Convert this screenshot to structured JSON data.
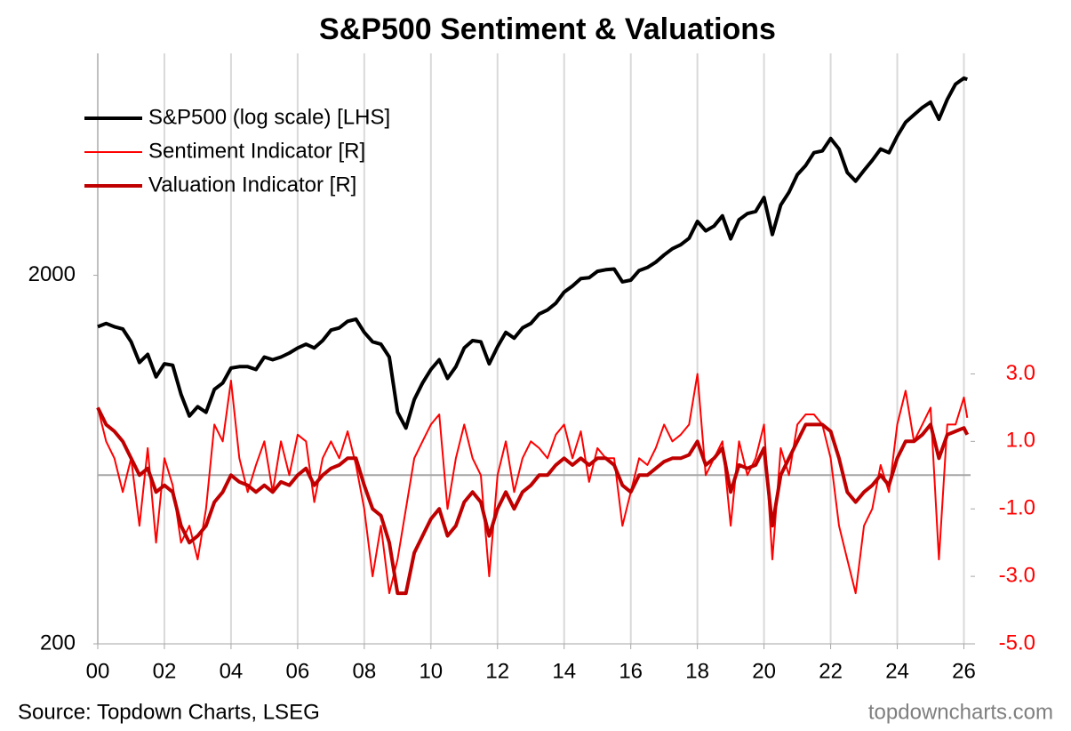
{
  "chart_data": {
    "type": "line",
    "title": "S&P500 Sentiment & Valuations",
    "annotations": {
      "source": "Source: Topdown Charts, LSEG",
      "watermark": "topdowncharts.com"
    },
    "x": [
      2000,
      2000.25,
      2000.5,
      2000.75,
      2001,
      2001.25,
      2001.5,
      2001.75,
      2002,
      2002.25,
      2002.5,
      2002.75,
      2003,
      2003.25,
      2003.5,
      2003.75,
      2004,
      2004.25,
      2004.5,
      2004.75,
      2005,
      2005.25,
      2005.5,
      2005.75,
      2006,
      2006.25,
      2006.5,
      2006.75,
      2007,
      2007.25,
      2007.5,
      2007.75,
      2008,
      2008.25,
      2008.5,
      2008.75,
      2009,
      2009.25,
      2009.5,
      2009.75,
      2010,
      2010.25,
      2010.5,
      2010.75,
      2011,
      2011.25,
      2011.5,
      2011.75,
      2012,
      2012.25,
      2012.5,
      2012.75,
      2013,
      2013.25,
      2013.5,
      2013.75,
      2014,
      2014.25,
      2014.5,
      2014.75,
      2015,
      2015.25,
      2015.5,
      2015.75,
      2016,
      2016.25,
      2016.5,
      2016.75,
      2017,
      2017.25,
      2017.5,
      2017.75,
      2018,
      2018.25,
      2018.5,
      2018.75,
      2019,
      2019.25,
      2019.5,
      2019.75,
      2020,
      2020.25,
      2020.5,
      2020.75,
      2021,
      2021.25,
      2021.5,
      2021.75,
      2022,
      2022.25,
      2022.5,
      2022.75,
      2023,
      2023.25,
      2023.5,
      2023.75,
      2024,
      2024.25,
      2024.5,
      2024.75,
      2025,
      2025.25,
      2025.5,
      2025.75,
      2026,
      2026.1
    ],
    "xlim": [
      2000,
      2026.2
    ],
    "xticks": [
      {
        "value": 2000,
        "label": "00"
      },
      {
        "value": 2002,
        "label": "02"
      },
      {
        "value": 2004,
        "label": "04"
      },
      {
        "value": 2006,
        "label": "06"
      },
      {
        "value": 2008,
        "label": "08"
      },
      {
        "value": 2010,
        "label": "10"
      },
      {
        "value": 2012,
        "label": "12"
      },
      {
        "value": 2014,
        "label": "14"
      },
      {
        "value": 2016,
        "label": "16"
      },
      {
        "value": 2018,
        "label": "18"
      },
      {
        "value": 2020,
        "label": "20"
      },
      {
        "value": 2022,
        "label": "22"
      },
      {
        "value": 2024,
        "label": "24"
      },
      {
        "value": 2026,
        "label": "26"
      }
    ],
    "ylim": [
      200,
      8000
    ],
    "yticks": [
      200,
      2000
    ],
    "ylog": true,
    "y2lim": [
      -5,
      12.5
    ],
    "y2ticks": [
      {
        "value": -5,
        "label": "-5.0"
      },
      {
        "value": -3,
        "label": "-3.0"
      },
      {
        "value": -1,
        "label": "-1.0"
      },
      {
        "value": 1,
        "label": "1.0"
      },
      {
        "value": 3,
        "label": "3.0"
      }
    ],
    "y2_color": "#ff0000",
    "hline": {
      "value": 0,
      "axis": "y2",
      "color": "#a6a6a6"
    },
    "grid": "x",
    "legend": "upper left",
    "series": [
      {
        "name": "S&P500 (log scale) [LHS]",
        "color": "#000000",
        "width": 4,
        "axis": "y",
        "values": [
          1450,
          1480,
          1450,
          1430,
          1320,
          1160,
          1220,
          1060,
          1150,
          1140,
          950,
          830,
          880,
          850,
          980,
          1020,
          1120,
          1130,
          1130,
          1110,
          1200,
          1180,
          1200,
          1230,
          1270,
          1300,
          1270,
          1330,
          1420,
          1440,
          1500,
          1520,
          1400,
          1320,
          1300,
          1200,
          850,
          770,
          920,
          1020,
          1110,
          1180,
          1050,
          1130,
          1270,
          1330,
          1320,
          1150,
          1280,
          1400,
          1350,
          1440,
          1480,
          1570,
          1610,
          1680,
          1800,
          1870,
          1960,
          1970,
          2050,
          2070,
          2080,
          1920,
          1940,
          2060,
          2100,
          2170,
          2270,
          2360,
          2420,
          2520,
          2800,
          2640,
          2720,
          2900,
          2510,
          2830,
          2940,
          2980,
          3250,
          2580,
          3100,
          3360,
          3750,
          3970,
          4300,
          4350,
          4700,
          4400,
          3800,
          3600,
          3850,
          4100,
          4400,
          4300,
          4770,
          5200,
          5450,
          5700,
          5900,
          5300,
          6000,
          6600,
          6850,
          6800
        ]
      },
      {
        "name": "Sentiment Indicator [R]",
        "color": "#ff0000",
        "width": 2,
        "axis": "y2",
        "values": [
          2.0,
          1.0,
          0.5,
          -0.5,
          0.5,
          -1.5,
          0.8,
          -2.0,
          0.5,
          -0.3,
          -2.0,
          -1.5,
          -2.5,
          -1.0,
          1.5,
          1.0,
          2.8,
          0.5,
          -0.5,
          0.3,
          1.0,
          -0.5,
          1.0,
          0.0,
          1.2,
          1.0,
          -0.8,
          0.5,
          1.0,
          0.5,
          1.3,
          0.3,
          -1.0,
          -3.0,
          -1.5,
          -3.5,
          -2.5,
          -1.0,
          0.5,
          1.0,
          1.5,
          1.8,
          -1.0,
          0.5,
          1.5,
          0.5,
          0.0,
          -3.0,
          0.0,
          1.0,
          -0.5,
          0.5,
          1.0,
          0.8,
          0.5,
          1.2,
          1.5,
          0.5,
          1.3,
          -0.2,
          0.8,
          0.5,
          0.5,
          -1.5,
          -0.5,
          0.5,
          0.3,
          0.8,
          1.5,
          1.0,
          1.2,
          1.5,
          3.0,
          0.0,
          0.5,
          1.0,
          -1.5,
          1.0,
          0.0,
          0.5,
          1.5,
          -2.5,
          0.8,
          0.0,
          1.5,
          1.8,
          1.8,
          1.5,
          0.5,
          -1.5,
          -2.5,
          -3.5,
          -1.5,
          -1.0,
          0.3,
          -0.5,
          1.5,
          2.5,
          1.0,
          1.5,
          2.0,
          -2.5,
          1.5,
          1.5,
          2.3,
          1.7
        ]
      },
      {
        "name": "Valuation Indicator [R]",
        "color": "#c00000",
        "width": 4,
        "axis": "y2",
        "values": [
          2.0,
          1.5,
          1.3,
          1.0,
          0.5,
          0.0,
          0.2,
          -0.5,
          -0.3,
          -0.5,
          -1.5,
          -2.0,
          -1.8,
          -1.5,
          -0.8,
          -0.5,
          0.0,
          -0.2,
          -0.3,
          -0.5,
          -0.3,
          -0.5,
          -0.2,
          -0.3,
          0.0,
          0.2,
          -0.3,
          0.0,
          0.2,
          0.3,
          0.5,
          0.5,
          -0.3,
          -1.0,
          -1.2,
          -2.0,
          -3.5,
          -3.5,
          -2.3,
          -1.8,
          -1.3,
          -1.0,
          -1.8,
          -1.5,
          -0.8,
          -0.5,
          -0.8,
          -1.8,
          -1.0,
          -0.5,
          -1.0,
          -0.5,
          -0.3,
          0.0,
          0.0,
          0.3,
          0.5,
          0.3,
          0.5,
          0.3,
          0.5,
          0.5,
          0.3,
          -0.3,
          -0.5,
          0.0,
          0.0,
          0.2,
          0.4,
          0.5,
          0.5,
          0.6,
          1.0,
          0.3,
          0.5,
          0.8,
          -0.5,
          0.3,
          0.2,
          0.3,
          0.8,
          -1.5,
          0.0,
          0.5,
          1.0,
          1.5,
          1.5,
          1.5,
          1.3,
          0.5,
          -0.5,
          -0.8,
          -0.5,
          -0.3,
          0.0,
          -0.3,
          0.5,
          1.0,
          1.0,
          1.2,
          1.5,
          0.5,
          1.2,
          1.3,
          1.4,
          1.2
        ]
      }
    ]
  }
}
